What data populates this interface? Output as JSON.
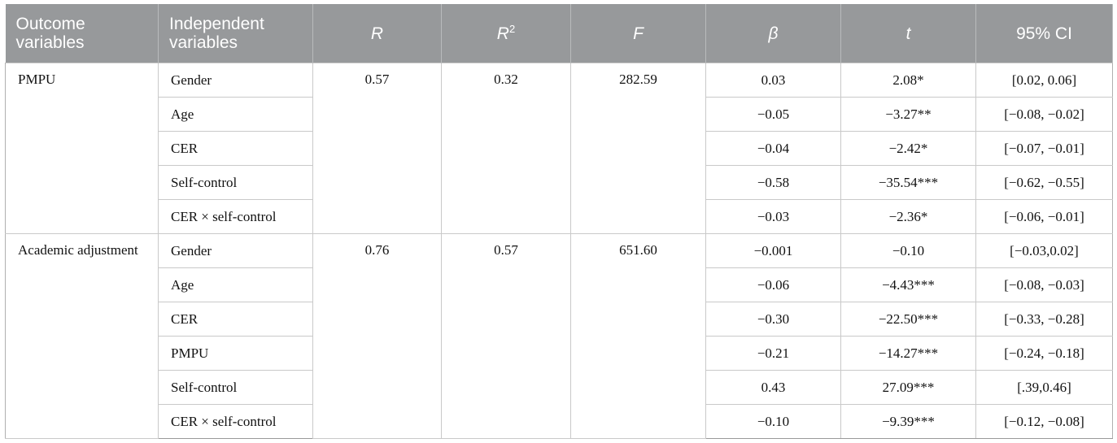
{
  "header": {
    "outcome": "Outcome variables",
    "independent": "Independent variables",
    "r": "R",
    "r2_base": "R",
    "r2_sup": "2",
    "f": "F",
    "beta": "β",
    "t": "t",
    "ci": "95% CI"
  },
  "groups": [
    {
      "outcome": "PMPU",
      "r": "0.57",
      "r2": "0.32",
      "f": "282.59",
      "rows": [
        {
          "var": "Gender",
          "beta": "0.03",
          "t": "2.08*",
          "ci": "[0.02, 0.06]"
        },
        {
          "var": "Age",
          "beta": "−0.05",
          "t": "−3.27**",
          "ci": "[−0.08, −0.02]"
        },
        {
          "var": "CER",
          "beta": "−0.04",
          "t": "−2.42*",
          "ci": "[−0.07, −0.01]"
        },
        {
          "var": "Self-control",
          "beta": "−0.58",
          "t": "−35.54***",
          "ci": "[−0.62, −0.55]"
        },
        {
          "var": "CER × self-control",
          "beta": "−0.03",
          "t": "−2.36*",
          "ci": "[−0.06, −0.01]"
        }
      ]
    },
    {
      "outcome": "Academic adjustment",
      "r": "0.76",
      "r2": "0.57",
      "f": "651.60",
      "rows": [
        {
          "var": "Gender",
          "beta": "−0.001",
          "t": "−0.10",
          "ci": "[−0.03,0.02]"
        },
        {
          "var": "Age",
          "beta": "−0.06",
          "t": "−4.43***",
          "ci": "[−0.08, −0.03]"
        },
        {
          "var": "CER",
          "beta": "−0.30",
          "t": "−22.50***",
          "ci": "[−0.33, −0.28]"
        },
        {
          "var": "PMPU",
          "beta": "−0.21",
          "t": "−14.27***",
          "ci": "[−0.24, −0.18]"
        },
        {
          "var": "Self-control",
          "beta": "0.43",
          "t": "27.09***",
          "ci": "[.39,0.46]"
        },
        {
          "var": "CER × self-control",
          "beta": "−0.10",
          "t": "−9.39***",
          "ci": "[−0.12, −0.08]"
        }
      ]
    }
  ]
}
